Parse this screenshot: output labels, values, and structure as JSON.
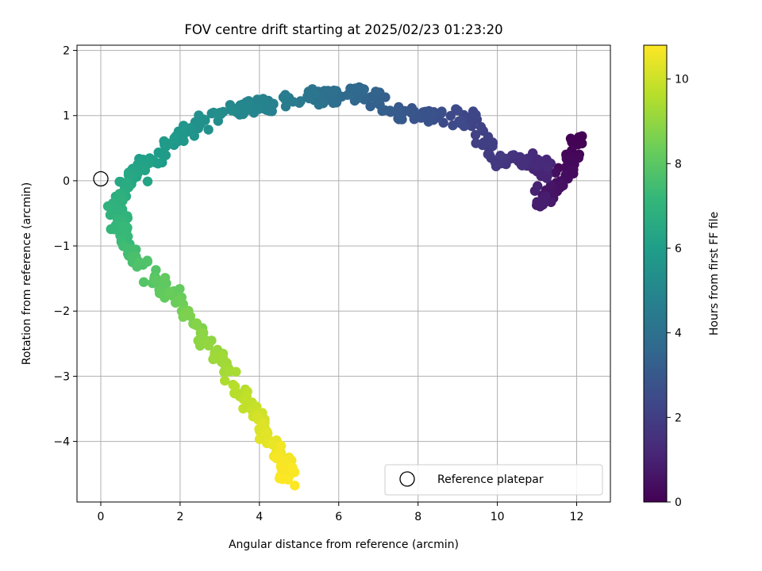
{
  "chart_data": {
    "type": "scatter",
    "title": "FOV centre drift starting at 2025/02/23 01:23:20",
    "xlabel": "Angular distance from reference (arcmin)",
    "ylabel": "Rotation from reference (arcmin)",
    "xlim": [
      -0.6,
      12.85
    ],
    "ylim": [
      -4.93,
      2.08
    ],
    "xticks": [
      0,
      2,
      4,
      6,
      8,
      10,
      12
    ],
    "yticks": [
      -4,
      -3,
      -2,
      -1,
      0,
      1,
      2
    ],
    "xtick_labels": [
      "0",
      "2",
      "4",
      "6",
      "8",
      "10",
      "12"
    ],
    "ytick_labels": [
      "−4",
      "−3",
      "−2",
      "−1",
      "0",
      "1",
      "2"
    ],
    "grid": true,
    "colormap": "viridis",
    "colorbar": {
      "label": "Hours from first FF file",
      "range": [
        0,
        10.8
      ],
      "ticks": [
        0,
        2,
        4,
        6,
        8,
        10
      ],
      "tick_labels": [
        "0",
        "2",
        "4",
        "6",
        "8",
        "10"
      ]
    },
    "legend": {
      "position": "bottom-right",
      "entries": [
        {
          "label": "Reference platepar",
          "marker": "open-circle"
        }
      ]
    },
    "reference_point": {
      "x": 0,
      "y": 0
    },
    "trajectory": {
      "approx_point_count": 600,
      "path": [
        [
          12.1,
          0.6,
          0.0
        ],
        [
          11.6,
          0.0,
          0.4
        ],
        [
          11.1,
          -0.4,
          0.8
        ],
        [
          11.1,
          0.3,
          1.2
        ],
        [
          10.0,
          0.3,
          1.8
        ],
        [
          9.5,
          0.9,
          2.2
        ],
        [
          8.5,
          1.0,
          2.6
        ],
        [
          7.5,
          1.0,
          3.0
        ],
        [
          6.8,
          1.3,
          3.4
        ],
        [
          6.0,
          1.3,
          3.8
        ],
        [
          5.2,
          1.3,
          4.2
        ],
        [
          4.3,
          1.15,
          4.7
        ],
        [
          3.6,
          1.1,
          5.0
        ],
        [
          2.6,
          0.95,
          5.4
        ],
        [
          2.0,
          0.7,
          5.7
        ],
        [
          1.3,
          0.35,
          6.0
        ],
        [
          0.7,
          0.0,
          6.4
        ],
        [
          0.4,
          -0.4,
          6.9
        ],
        [
          0.6,
          -0.9,
          7.3
        ],
        [
          1.0,
          -1.3,
          7.7
        ],
        [
          1.8,
          -1.7,
          8.2
        ],
        [
          2.6,
          -2.4,
          8.9
        ],
        [
          3.3,
          -3.0,
          9.4
        ],
        [
          3.9,
          -3.6,
          10.0
        ],
        [
          4.5,
          -4.2,
          10.6
        ],
        [
          4.8,
          -4.6,
          10.8
        ]
      ]
    }
  }
}
